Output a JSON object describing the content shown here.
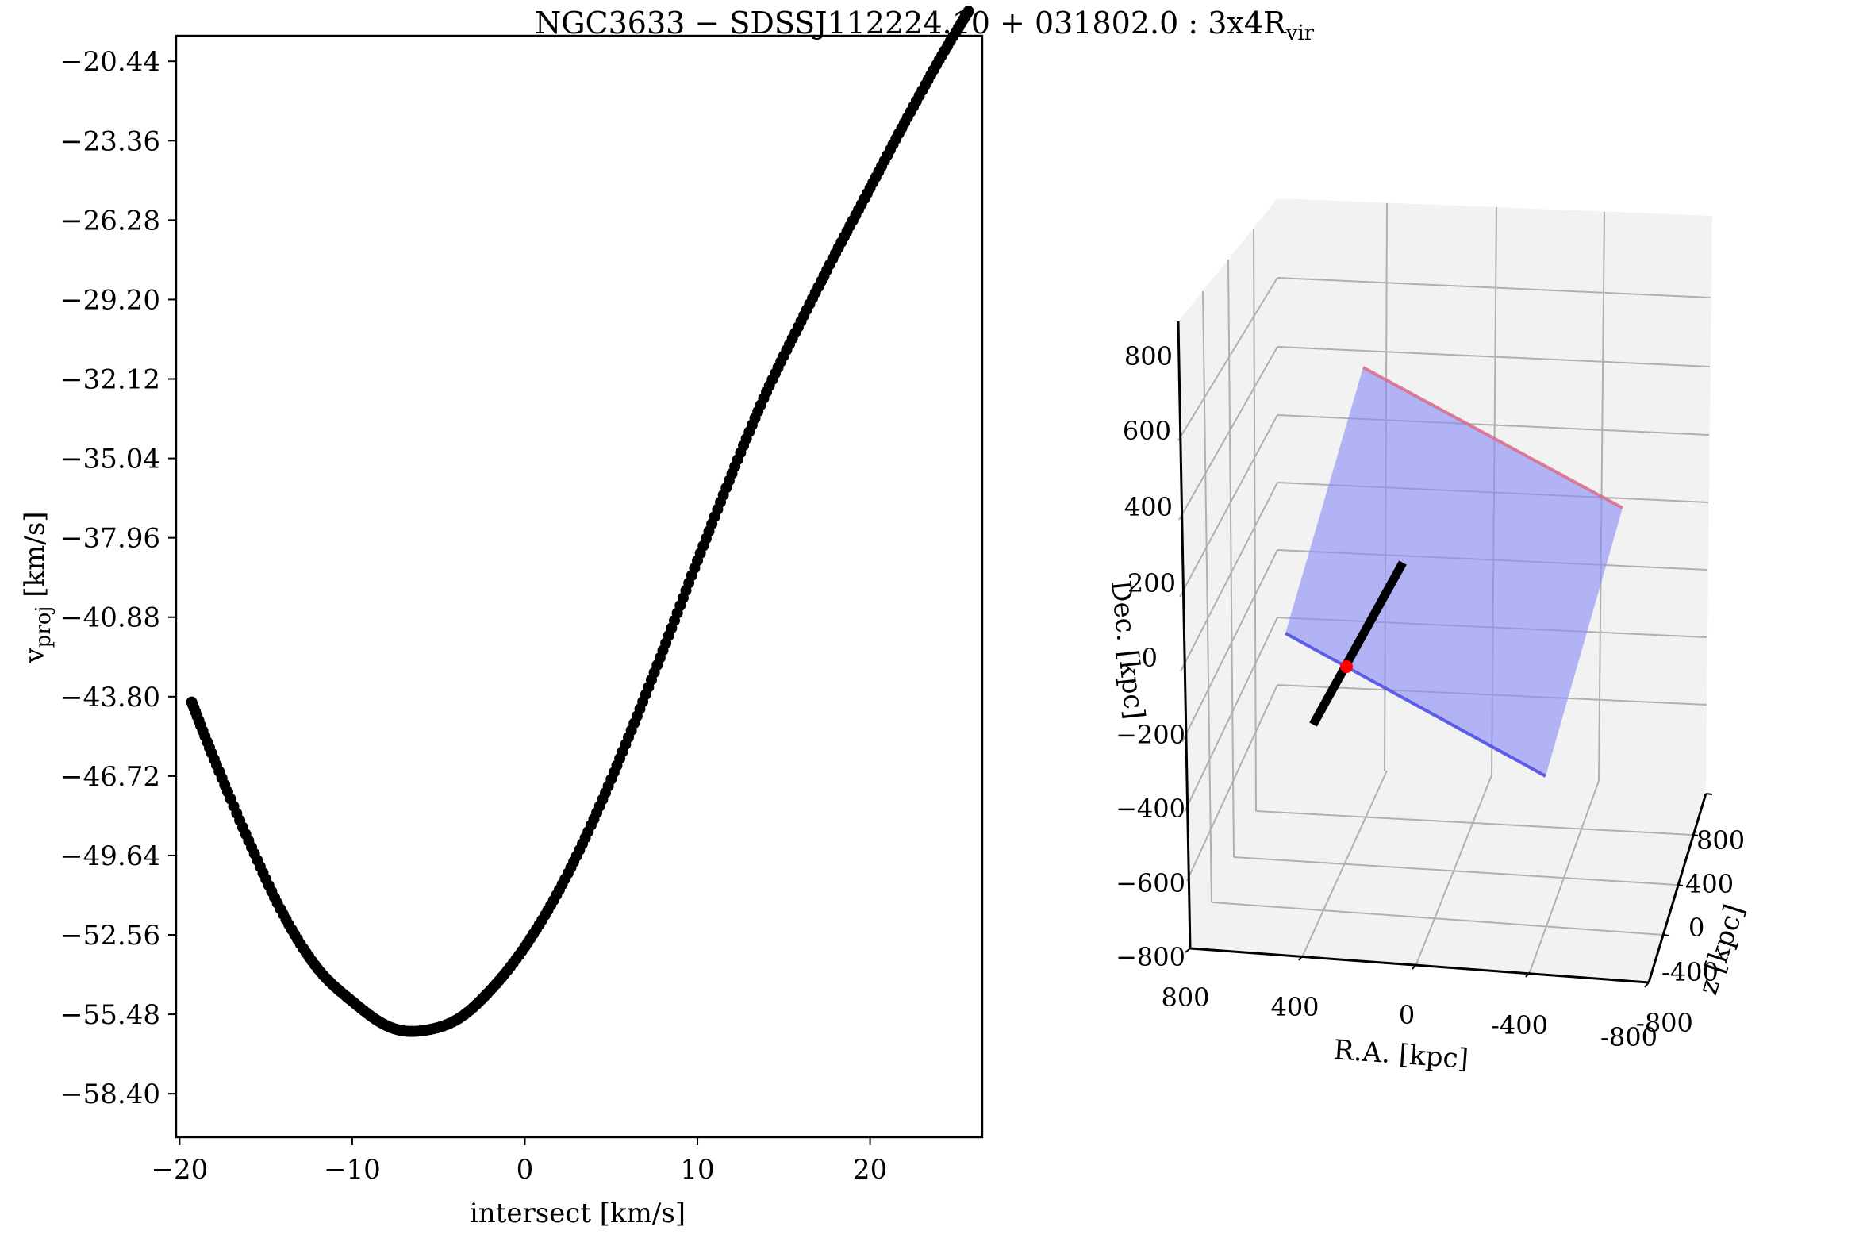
{
  "figure": {
    "title_main": "NGC3633 − SDSSJ112224.10 + 031802.0 :  3x4R",
    "title_sub": "vir"
  },
  "chart_data": [
    {
      "type": "scatter",
      "xlabel": "intersect [km/s]",
      "ylabel_main": "v",
      "ylabel_sub": "proj",
      "ylabel_unit": " [km/s]",
      "xlim": [
        -20.2,
        26.5
      ],
      "ylim": [
        -60.0,
        -19.5
      ],
      "xticks": [
        -20,
        -10,
        0,
        10,
        20
      ],
      "xtick_labels": [
        "−20",
        "−10",
        "0",
        "10",
        "20"
      ],
      "yticks": [
        -20.44,
        -23.36,
        -26.28,
        -29.2,
        -32.12,
        -35.04,
        -37.96,
        -40.88,
        -43.8,
        -46.72,
        -49.64,
        -52.56,
        -55.48,
        -58.4
      ],
      "ytick_labels": [
        "−20.44",
        "−23.36",
        "−26.28",
        "−29.20",
        "−32.12",
        "−35.04",
        "−37.96",
        "−40.88",
        "−43.80",
        "−46.72",
        "−49.64",
        "−52.56",
        "−55.48",
        "−58.40"
      ],
      "marker_color": "#000000",
      "x": [
        -19.3,
        -18.0,
        -16.0,
        -14.0,
        -12.0,
        -10.0,
        -8.0,
        -6.2,
        -4.0,
        -2.0,
        0.0,
        2.0,
        4.0,
        6.0,
        8.0,
        10.0,
        12.0,
        14.0,
        16.0,
        18.0,
        20.0,
        22.0,
        24.0,
        25.7
      ],
      "y": [
        -44.0,
        -46.1,
        -49.1,
        -51.8,
        -53.8,
        -55.0,
        -55.9,
        -56.1,
        -55.7,
        -54.6,
        -53.0,
        -50.9,
        -48.3,
        -45.3,
        -42.1,
        -38.8,
        -35.6,
        -32.6,
        -30.0,
        -27.5,
        -25.1,
        -22.7,
        -20.4,
        -18.6
      ],
      "grid": false
    },
    {
      "type": "3d",
      "xlabel": "R.A. [kpc]",
      "ylabel": "z [kpc]",
      "zlabel": "Dec. [kpc]",
      "ra_tick_labels": [
        "800",
        "400",
        "0",
        "-400",
        "-800"
      ],
      "z_tick_labels": [
        "800",
        "400",
        "0",
        "-400",
        "-800"
      ],
      "dec_tick_labels": [
        "800",
        "600",
        "400",
        "200",
        "0",
        "−200",
        "−400",
        "−600",
        "−800"
      ],
      "grid": true,
      "pane_color": "#f2f2f2",
      "grid_color": "#b0b0b0",
      "box_fill_color": "#8a8cf5",
      "box_top_edge_color": "#d96a86",
      "box_bottom_edge_color": "#4646e8",
      "sightline_color": "#000000",
      "marker_color": "#ff0000"
    }
  ]
}
